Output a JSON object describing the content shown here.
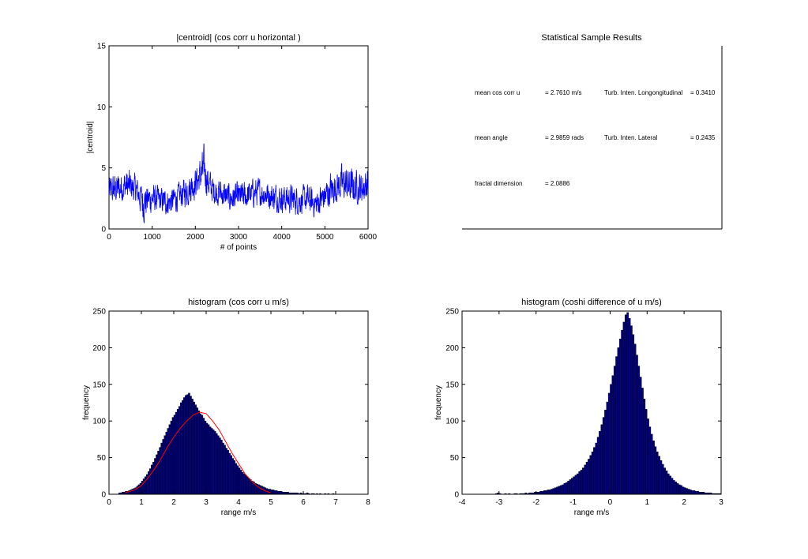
{
  "colors": {
    "line": "#0000ff",
    "bar_fill": "#000080",
    "bar_edge": "#000000",
    "fit": "#ff0000",
    "axis": "#000000"
  },
  "chart_data": [
    {
      "id": "timeseries",
      "type": "line",
      "title": "|centroid| (cos corr u horizontal )",
      "xlabel": "# of points",
      "ylabel": "|centroid|",
      "xlim": [
        0,
        6000
      ],
      "ylim": [
        0,
        15
      ],
      "xticks": [
        0,
        1000,
        2000,
        3000,
        4000,
        5000,
        6000
      ],
      "yticks": [
        0,
        5,
        10,
        15
      ],
      "grid": false,
      "n_points": 6000,
      "envelope": {
        "x": [
          0,
          200,
          400,
          600,
          800,
          1000,
          1200,
          1400,
          1600,
          1800,
          2000,
          2100,
          2200,
          2300,
          2400,
          2600,
          2800,
          3000,
          3200,
          3400,
          3600,
          3800,
          4000,
          4200,
          4400,
          4600,
          4800,
          5000,
          5200,
          5400,
          5600,
          5800,
          6000
        ],
        "mean": [
          3.0,
          3.2,
          3.5,
          3.3,
          2.4,
          2.5,
          2.3,
          2.2,
          2.6,
          3.2,
          3.8,
          4.2,
          4.8,
          3.8,
          3.2,
          2.9,
          2.5,
          2.6,
          2.7,
          3.0,
          2.9,
          2.6,
          2.5,
          2.4,
          2.3,
          2.4,
          2.0,
          2.6,
          3.2,
          3.6,
          3.3,
          3.2,
          3.5
        ],
        "max": [
          4.5,
          4.8,
          5.2,
          4.6,
          3.6,
          3.8,
          3.5,
          3.4,
          3.8,
          4.5,
          5.2,
          5.8,
          7.0,
          5.2,
          4.5,
          4.2,
          3.8,
          3.9,
          4.0,
          4.3,
          4.2,
          3.9,
          3.8,
          3.8,
          3.6,
          3.7,
          3.4,
          4.3,
          5.0,
          5.4,
          5.2,
          5.0,
          5.4
        ],
        "min": [
          1.8,
          2.0,
          2.2,
          2.1,
          0.4,
          1.2,
          1.1,
          1.0,
          1.4,
          1.8,
          2.4,
          2.8,
          3.0,
          2.4,
          2.0,
          1.7,
          1.3,
          1.4,
          1.5,
          1.8,
          1.7,
          1.4,
          1.3,
          1.2,
          1.1,
          1.2,
          0.8,
          1.4,
          2.0,
          2.3,
          2.1,
          2.0,
          2.3
        ]
      }
    },
    {
      "id": "stats",
      "type": "table",
      "title": "Statistical Sample Results",
      "rows": [
        {
          "label": "mean cos corr u",
          "value": "= 2.7610 m/s",
          "label2": "Turb. Inten. Longongitudinal",
          "value2": "= 0.3410"
        },
        {
          "label": "mean angle",
          "value": "= 2.9859 rads",
          "label2": "Turb. Inten. Lateral",
          "value2": "= 0.2435"
        },
        {
          "label": "fractal dimension",
          "value": "= 2.0886",
          "label2": "",
          "value2": ""
        }
      ]
    },
    {
      "id": "hist1",
      "type": "bar",
      "title": "histogram (cos corr u m/s)",
      "xlabel": "range m/s",
      "ylabel": "frequency",
      "xlim": [
        0,
        8
      ],
      "ylim": [
        0,
        250
      ],
      "xticks": [
        0,
        1,
        2,
        3,
        4,
        5,
        6,
        7,
        8
      ],
      "yticks": [
        0,
        50,
        100,
        150,
        200,
        250
      ],
      "grid": false,
      "bin_start": 0.3,
      "bin_width": 0.05,
      "values": [
        2,
        2,
        3,
        3,
        4,
        4,
        5,
        6,
        7,
        8,
        9,
        11,
        13,
        15,
        18,
        21,
        24,
        27,
        31,
        35,
        40,
        44,
        49,
        54,
        59,
        64,
        70,
        75,
        80,
        85,
        90,
        95,
        100,
        105,
        108,
        112,
        116,
        120,
        125,
        128,
        132,
        135,
        136,
        138,
        134,
        130,
        126,
        122,
        118,
        114,
        110,
        108,
        104,
        100,
        97,
        95,
        92,
        90,
        88,
        86,
        83,
        80,
        77,
        74,
        70,
        67,
        63,
        60,
        56,
        53,
        49,
        46,
        42,
        39,
        36,
        33,
        30,
        28,
        26,
        24,
        22,
        20,
        18,
        17,
        15,
        14,
        13,
        12,
        11,
        10,
        9,
        8,
        7,
        7,
        6,
        6,
        5,
        5,
        4,
        4,
        4,
        3,
        3,
        3,
        3,
        2,
        2,
        2,
        2,
        2,
        2,
        1,
        2,
        1,
        1,
        1,
        2,
        1,
        0,
        1,
        1,
        0,
        1,
        0,
        1,
        0,
        0,
        1,
        0,
        1,
        0,
        0,
        1,
        0
      ],
      "fit": {
        "name": "",
        "x": [
          0.5,
          0.8,
          1.0,
          1.2,
          1.4,
          1.6,
          1.8,
          2.0,
          2.2,
          2.4,
          2.6,
          2.8,
          3.0,
          3.2,
          3.4,
          3.6,
          3.8,
          4.0,
          4.2,
          4.4,
          4.6,
          4.8,
          5.0
        ],
        "y": [
          2,
          6,
          12,
          22,
          34,
          48,
          64,
          78,
          90,
          100,
          108,
          112,
          110,
          100,
          88,
          72,
          56,
          42,
          28,
          18,
          10,
          5,
          2
        ]
      }
    },
    {
      "id": "hist2",
      "type": "bar",
      "title": "histogram (coshi difference of u m/s)",
      "xlabel": "range m/s",
      "ylabel": "frequency",
      "xlim": [
        -4,
        3
      ],
      "ylim": [
        0,
        250
      ],
      "xticks": [
        -4,
        -3,
        -2,
        -1,
        0,
        1,
        2,
        3
      ],
      "yticks": [
        0,
        50,
        100,
        150,
        200,
        250
      ],
      "grid": false,
      "bin_start": -3.1,
      "bin_width": 0.05,
      "values": [
        1,
        2,
        1,
        0,
        0,
        1,
        0,
        1,
        0,
        0,
        1,
        1,
        0,
        1,
        1,
        1,
        2,
        1,
        2,
        2,
        2,
        3,
        3,
        3,
        4,
        4,
        5,
        5,
        6,
        6,
        7,
        8,
        9,
        10,
        11,
        12,
        13,
        15,
        16,
        18,
        20,
        22,
        24,
        26,
        28,
        31,
        33,
        36,
        40,
        44,
        48,
        53,
        58,
        64,
        70,
        78,
        86,
        95,
        105,
        115,
        126,
        138,
        150,
        162,
        175,
        188,
        200,
        212,
        224,
        235,
        245,
        248,
        240,
        230,
        218,
        205,
        190,
        175,
        160,
        145,
        130,
        116,
        103,
        92,
        82,
        73,
        65,
        58,
        52,
        46,
        41,
        36,
        32,
        28,
        25,
        22,
        19,
        17,
        15,
        13,
        12,
        10,
        9,
        8,
        7,
        6,
        5,
        5,
        4,
        4,
        3,
        3,
        3,
        2,
        2,
        2,
        2,
        1,
        1,
        1,
        1,
        1
      ]
    }
  ]
}
